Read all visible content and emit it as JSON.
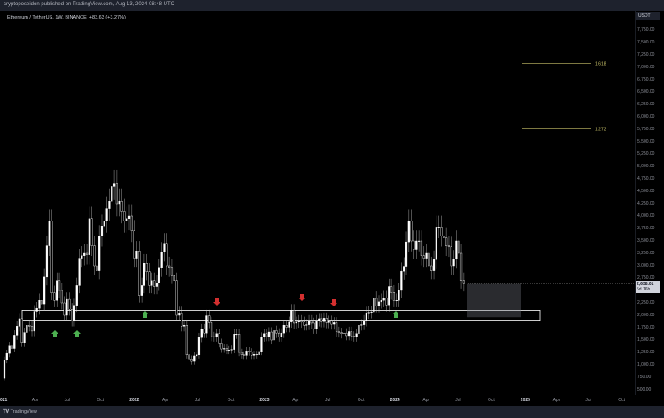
{
  "header": {
    "publisher": "cryptoposeidon published on TradingView.com, Aug 13, 2024 08:48 UTC"
  },
  "legend": {
    "symbol": "Ethereum / TetherUS, 1W, BINANCE",
    "change": "+83.63 (+3.27%)"
  },
  "price_axis": {
    "unit": "USDT",
    "ticks": [
      "7,750.00",
      "7,500.00",
      "7,250.00",
      "7,000.00",
      "6,750.00",
      "6,500.00",
      "6,250.00",
      "6,000.00",
      "5,750.00",
      "5,500.00",
      "5,250.00",
      "5,000.00",
      "4,750.00",
      "4,500.00",
      "4,250.00",
      "4,000.00",
      "3,750.00",
      "3,500.00",
      "3,250.00",
      "3,000.00",
      "2,750.00",
      "2,250.00",
      "2,000.00",
      "1,750.00",
      "1,500.00",
      "1,250.00",
      "1,000.00",
      "750.00",
      "500.00"
    ],
    "current_price": "2,638.01",
    "countdown": "5d 16h"
  },
  "time_axis": {
    "ticks": [
      "021",
      "Apr",
      "Jul",
      "Oct",
      "2022",
      "Apr",
      "Jul",
      "Oct",
      "2023",
      "Apr",
      "Jul",
      "Oct",
      "2024",
      "Apr",
      "Jul",
      "Oct",
      "2025",
      "Apr",
      "Jul",
      "Oct"
    ]
  },
  "fib": [
    {
      "label": "1.618",
      "price": 7080
    },
    {
      "label": "1.272",
      "price": 5760
    }
  ],
  "colors": {
    "up_arrow": "#4caf50",
    "down_arrow": "#d32f2f",
    "fib": "#c9c26a",
    "candle": "#ffffff"
  },
  "zones": {
    "support": [
      1900,
      2100
    ],
    "current_box": [
      1960,
      2630
    ]
  },
  "brand": "TradingView",
  "weekly_closes": [
    1100,
    1230,
    1380,
    1330,
    1600,
    1780,
    1930,
    1450,
    1650,
    1800,
    1780,
    1680,
    2080,
    2140,
    2300,
    2230,
    2770,
    3400,
    3900,
    2450,
    2300,
    2700,
    2500,
    2250,
    2000,
    2320,
    2120,
    1890,
    2200,
    2600,
    3150,
    3200,
    3250,
    3220,
    3950,
    3400,
    3000,
    2900,
    3600,
    3800,
    3900,
    4150,
    4300,
    4600,
    4650,
    4250,
    4300,
    4100,
    3900,
    3950,
    4000,
    3700,
    3150,
    3300,
    2400,
    2600,
    3050,
    2880,
    2600,
    2700,
    2580,
    2650,
    2950,
    3280,
    3450,
    3000,
    2950,
    2800,
    2700,
    2000,
    2050,
    1780,
    1800,
    1200,
    1120,
    1070,
    1180,
    1200,
    1550,
    1720,
    1640,
    1990,
    1850,
    1570,
    1560,
    1630,
    1440,
    1320,
    1330,
    1290,
    1300,
    1310,
    1620,
    1620,
    1250,
    1200,
    1190,
    1280,
    1260,
    1190,
    1210,
    1200,
    1270,
    1560,
    1630,
    1570,
    1660,
    1500,
    1690,
    1640,
    1560,
    1640,
    1800,
    1760,
    1860,
    2100,
    1840,
    1860,
    1890,
    1860,
    1800,
    1810,
    1890,
    1840,
    1730,
    1890,
    1930,
    1870,
    1940,
    1850,
    1880,
    1820,
    1850,
    1670,
    1650,
    1630,
    1640,
    1590,
    1670,
    1580,
    1560,
    1630,
    1800,
    1810,
    1890,
    2050,
    2060,
    2070,
    2340,
    2190,
    2270,
    2300,
    2350,
    2210,
    2580,
    2460,
    2300,
    2300,
    2500,
    2890,
    2990,
    3480,
    3900,
    3500,
    3330,
    3500,
    3500,
    3200,
    3150,
    3250,
    3000,
    2900,
    3120,
    3780,
    3780,
    3600,
    3560,
    3400,
    3380,
    3000,
    3130,
    3500,
    3250,
    2700,
    2638
  ]
}
